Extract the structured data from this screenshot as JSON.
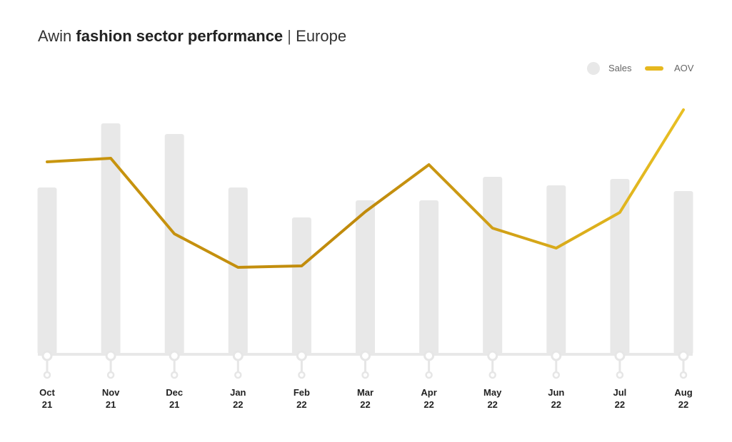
{
  "chart_data": {
    "type": "bar",
    "title_prefix": "Awin",
    "title_bold": "fashion sector performance",
    "title_separator": "|",
    "title_suffix": "Europe",
    "categories": [
      {
        "month": "Oct",
        "year": "21"
      },
      {
        "month": "Nov",
        "year": "21"
      },
      {
        "month": "Dec",
        "year": "21"
      },
      {
        "month": "Jan",
        "year": "22"
      },
      {
        "month": "Feb",
        "year": "22"
      },
      {
        "month": "Mar",
        "year": "22"
      },
      {
        "month": "Apr",
        "year": "22"
      },
      {
        "month": "May",
        "year": "22"
      },
      {
        "month": "Jun",
        "year": "22"
      },
      {
        "month": "Jul",
        "year": "22"
      },
      {
        "month": "Aug",
        "year": "22"
      }
    ],
    "series": [
      {
        "name": "Sales",
        "type": "bar",
        "color": "#e8e8e8",
        "values": [
          234,
          324,
          309,
          234,
          192,
          216,
          216,
          249,
          237,
          246,
          229
        ]
      },
      {
        "name": "AOV",
        "type": "line",
        "color": "#d4a514",
        "values": [
          270,
          275,
          169,
          122,
          124,
          200,
          266,
          177,
          149,
          199,
          343
        ]
      }
    ],
    "ylim": [
      0,
      350
    ],
    "y_axis_shown": false,
    "values_note_units": "relative index (no axis scale shown)",
    "legend_position": "top-right",
    "grid": false
  }
}
